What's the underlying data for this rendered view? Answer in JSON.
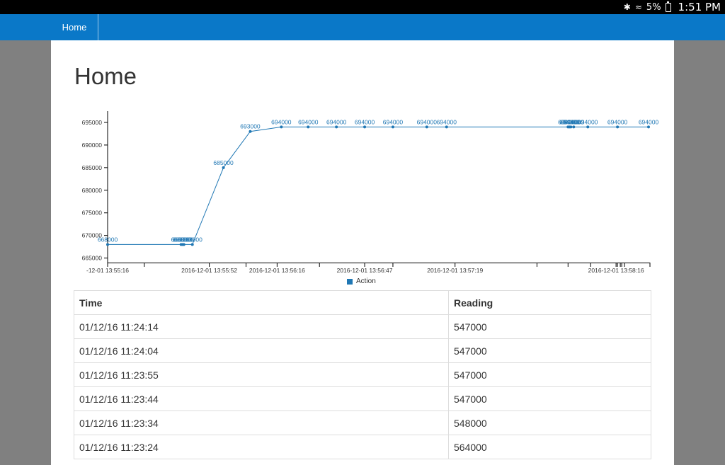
{
  "status_bar": {
    "battery": "5%",
    "time": "1:51 PM",
    "icons": [
      "bluetooth-icon",
      "wifi-icon",
      "battery-icon"
    ]
  },
  "nav": {
    "home_label": "Home"
  },
  "page": {
    "title": "Home"
  },
  "chart_data": {
    "type": "line",
    "title": "",
    "xlabel": "",
    "ylabel": "",
    "y_ticks": [
      "665000",
      "670000",
      "675000",
      "680000",
      "685000",
      "690000",
      "695000"
    ],
    "ylim": [
      664000,
      697500
    ],
    "x_ticks": [
      {
        "t": 0,
        "label": "-12-01 13:55:16"
      },
      {
        "t": 36,
        "label": "2016-12-01 13:55:52"
      },
      {
        "t": 60,
        "label": "2016-12-01 13:56:16"
      },
      {
        "t": 91,
        "label": "2016-12-01 13:56:47"
      },
      {
        "t": 123,
        "label": "2016-12-01 13:57:19"
      },
      {
        "t": 180,
        "label": "2016-12-01 13:58:16"
      }
    ],
    "extra_tick_times": [
      13,
      49,
      75,
      101,
      152,
      163,
      171,
      180.5,
      181.5,
      182,
      183,
      192
    ],
    "x_time_range": [
      0,
      192
    ],
    "colors": {
      "line": "#1f77b4",
      "label": "#1f77b4"
    },
    "series": [
      {
        "name": "Action",
        "points": [
          {
            "t": 0,
            "y": 668000,
            "label": "668000"
          },
          {
            "t": 26,
            "y": 668000,
            "label": "668000"
          },
          {
            "t": 26.5,
            "y": 668000,
            "label": "668000"
          },
          {
            "t": 27,
            "y": 668000,
            "label": "668000"
          },
          {
            "t": 30,
            "y": 668000,
            "label": "668000"
          },
          {
            "t": 41,
            "y": 685000,
            "label": "685000"
          },
          {
            "t": 50.5,
            "y": 693000,
            "label": "693000"
          },
          {
            "t": 61.5,
            "y": 694000,
            "label": "694000"
          },
          {
            "t": 71,
            "y": 694000,
            "label": "694000"
          },
          {
            "t": 81,
            "y": 694000,
            "label": "694000"
          },
          {
            "t": 91,
            "y": 694000,
            "label": "694000"
          },
          {
            "t": 101,
            "y": 694000,
            "label": "694000"
          },
          {
            "t": 113,
            "y": 694000,
            "label": "694000"
          },
          {
            "t": 120,
            "y": 694000,
            "label": "694000"
          },
          {
            "t": 163,
            "y": 694000,
            "label": "694000"
          },
          {
            "t": 163.5,
            "y": 694000,
            "label": "694000"
          },
          {
            "t": 164,
            "y": 694000,
            "label": "694000"
          },
          {
            "t": 165,
            "y": 694000,
            "label": "694000"
          },
          {
            "t": 170,
            "y": 694000,
            "label": "694000"
          },
          {
            "t": 180.5,
            "y": 694000,
            "label": "694000"
          },
          {
            "t": 191.5,
            "y": 694000,
            "label": "694000"
          }
        ]
      }
    ]
  },
  "legend": {
    "label": "Action"
  },
  "table": {
    "headers": [
      "Time",
      "Reading"
    ],
    "rows": [
      [
        "01/12/16 11:24:14",
        "547000"
      ],
      [
        "01/12/16 11:24:04",
        "547000"
      ],
      [
        "01/12/16 11:23:55",
        "547000"
      ],
      [
        "01/12/16 11:23:44",
        "547000"
      ],
      [
        "01/12/16 11:23:34",
        "548000"
      ],
      [
        "01/12/16 11:23:24",
        "564000"
      ]
    ]
  }
}
